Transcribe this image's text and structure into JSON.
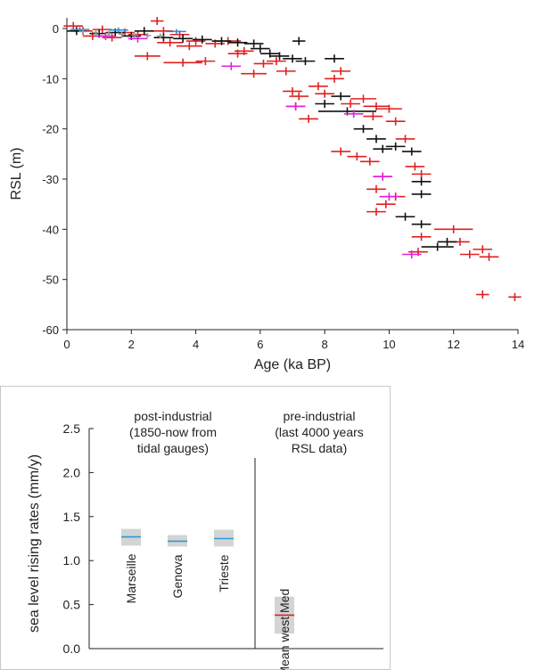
{
  "chart_data": [
    {
      "type": "scatter",
      "xlabel": "Age (ka BP)",
      "ylabel": "RSL (m)",
      "xlim": [
        0,
        14
      ],
      "ylim": [
        -60,
        2
      ],
      "xticks": [
        "0",
        "2",
        "4",
        "6",
        "8",
        "10",
        "12",
        "14"
      ],
      "yticks": [
        "0",
        "-10",
        "-20",
        "-30",
        "-40",
        "-50",
        "-60"
      ],
      "grid": false,
      "series": [
        {
          "color": "#e02020",
          "points": [
            [
              0.2,
              0.5,
              0.3,
              0.8
            ],
            [
              0.5,
              -0.5,
              0.3,
              0.8
            ],
            [
              0.8,
              -1.5,
              0.3,
              0.8
            ],
            [
              1.1,
              -0.2,
              0.3,
              0.8
            ],
            [
              1.4,
              -1.8,
              0.3,
              0.8
            ],
            [
              1.8,
              -0.8,
              0.3,
              0.8
            ],
            [
              2.2,
              -1.2,
              0.3,
              0.8
            ],
            [
              2.5,
              -5.5,
              0.4,
              0.8
            ],
            [
              2.8,
              1.5,
              0.2,
              0.8
            ],
            [
              3.0,
              -0.5,
              0.3,
              0.8
            ],
            [
              3.2,
              -2.8,
              0.4,
              0.8
            ],
            [
              3.5,
              -1.2,
              0.3,
              0.8
            ],
            [
              3.8,
              -3.5,
              0.4,
              0.8
            ],
            [
              4.0,
              -2.5,
              0.3,
              0.8
            ],
            [
              3.6,
              -6.8,
              0.6,
              0.8
            ],
            [
              4.3,
              -6.5,
              0.3,
              0.8
            ],
            [
              4.6,
              -3.0,
              0.3,
              0.8
            ],
            [
              5.0,
              -2.5,
              0.4,
              0.8
            ],
            [
              5.3,
              -5.0,
              0.3,
              0.8
            ],
            [
              5.5,
              -4.5,
              0.3,
              0.8
            ],
            [
              5.8,
              -9.0,
              0.4,
              0.8
            ],
            [
              6.1,
              -7.0,
              0.3,
              0.8
            ],
            [
              6.5,
              -6.5,
              0.3,
              0.8
            ],
            [
              6.8,
              -8.5,
              0.3,
              0.8
            ],
            [
              7.0,
              -12.5,
              0.3,
              0.8
            ],
            [
              7.2,
              -13.5,
              0.3,
              0.8
            ],
            [
              7.1,
              -15.5,
              0.3,
              0.8
            ],
            [
              7.5,
              -18.0,
              0.3,
              0.8
            ],
            [
              7.8,
              -11.5,
              0.3,
              0.8
            ],
            [
              8.0,
              -13.0,
              0.3,
              0.8
            ],
            [
              8.3,
              -10.0,
              0.3,
              0.8
            ],
            [
              8.5,
              -8.5,
              0.3,
              0.8
            ],
            [
              8.8,
              -15.0,
              0.3,
              0.8
            ],
            [
              9.2,
              -14.0,
              0.4,
              0.8
            ],
            [
              9.5,
              -17.5,
              0.3,
              0.8
            ],
            [
              9.6,
              -15.5,
              0.4,
              0.8
            ],
            [
              10.0,
              -16.0,
              0.4,
              0.8
            ],
            [
              10.2,
              -18.5,
              0.3,
              0.8
            ],
            [
              8.5,
              -24.5,
              0.3,
              0.8
            ],
            [
              9.0,
              -25.5,
              0.3,
              0.8
            ],
            [
              9.4,
              -26.5,
              0.3,
              0.8
            ],
            [
              9.6,
              -32.0,
              0.3,
              0.8
            ],
            [
              9.9,
              -35.0,
              0.3,
              0.8
            ],
            [
              10.2,
              -33.5,
              0.3,
              0.8
            ],
            [
              9.8,
              -29.5,
              0.3,
              0.8
            ],
            [
              10.5,
              -22.0,
              0.3,
              0.8
            ],
            [
              11.0,
              -29.0,
              0.3,
              0.8
            ],
            [
              10.8,
              -27.5,
              0.3,
              0.8
            ],
            [
              10.9,
              -44.5,
              0.3,
              0.8
            ],
            [
              11.0,
              -41.5,
              0.3,
              0.8
            ],
            [
              12.0,
              -40.0,
              0.6,
              0.8
            ],
            [
              12.2,
              -42.5,
              0.3,
              0.8
            ],
            [
              12.5,
              -45.0,
              0.3,
              0.8
            ],
            [
              12.9,
              -44.0,
              0.3,
              0.8
            ],
            [
              13.1,
              -45.5,
              0.3,
              0.8
            ],
            [
              12.9,
              -53.0,
              0.2,
              0.8
            ],
            [
              13.9,
              -53.5,
              0.2,
              0.8
            ],
            [
              9.6,
              -36.5,
              0.3,
              0.8
            ]
          ]
        },
        {
          "color": "#111111",
          "points": [
            [
              0.3,
              -0.5,
              0.3,
              0.8
            ],
            [
              1.0,
              -1.0,
              0.3,
              0.8
            ],
            [
              1.5,
              -0.8,
              0.3,
              0.8
            ],
            [
              2.0,
              -1.5,
              0.3,
              0.8
            ],
            [
              2.4,
              -0.5,
              0.3,
              0.8
            ],
            [
              3.0,
              -1.8,
              0.3,
              0.8
            ],
            [
              3.6,
              -2.0,
              0.3,
              0.8
            ],
            [
              4.2,
              -2.2,
              0.3,
              0.8
            ],
            [
              4.8,
              -2.5,
              0.3,
              0.8
            ],
            [
              5.3,
              -2.8,
              0.3,
              0.8
            ],
            [
              5.8,
              -3.0,
              0.3,
              0.8
            ],
            [
              6.0,
              -4.0,
              0.3,
              0.8
            ],
            [
              6.3,
              -5.0,
              0.3,
              0.8
            ],
            [
              6.6,
              -5.5,
              0.3,
              0.8
            ],
            [
              7.0,
              -6.0,
              0.3,
              0.8
            ],
            [
              7.4,
              -6.5,
              0.3,
              0.8
            ],
            [
              7.2,
              -2.5,
              0.2,
              0.8
            ],
            [
              8.3,
              -6.0,
              0.3,
              0.8
            ],
            [
              8.0,
              -15.0,
              0.3,
              0.8
            ],
            [
              8.5,
              -13.5,
              0.3,
              0.8
            ],
            [
              8.7,
              -16.5,
              0.9,
              0.8
            ],
            [
              9.2,
              -20.0,
              0.3,
              0.8
            ],
            [
              9.6,
              -22.0,
              0.3,
              0.8
            ],
            [
              9.8,
              -24.0,
              0.3,
              0.8
            ],
            [
              10.2,
              -23.5,
              0.3,
              0.8
            ],
            [
              10.7,
              -24.5,
              0.3,
              0.8
            ],
            [
              11.0,
              -30.5,
              0.3,
              0.8
            ],
            [
              11.0,
              -33.0,
              0.3,
              0.8
            ],
            [
              11.0,
              -39.0,
              0.3,
              0.8
            ],
            [
              10.5,
              -37.5,
              0.3,
              0.8
            ],
            [
              11.5,
              -43.5,
              0.5,
              0.8
            ],
            [
              11.8,
              -42.5,
              0.3,
              0.8
            ]
          ]
        },
        {
          "color": "#e020e0",
          "points": [
            [
              1.2,
              -1.5,
              0.3,
              0.8
            ],
            [
              2.2,
              -2.0,
              0.3,
              0.8
            ],
            [
              5.1,
              -7.5,
              0.3,
              0.8
            ],
            [
              7.1,
              -15.5,
              0.3,
              0.8
            ],
            [
              9.8,
              -29.5,
              0.3,
              0.8
            ],
            [
              10.0,
              -33.5,
              0.3,
              0.8
            ],
            [
              10.7,
              -45.0,
              0.3,
              0.8
            ],
            [
              8.9,
              -17.0,
              0.3,
              0.8
            ]
          ]
        },
        {
          "color": "#2090e0",
          "points": [
            [
              0.4,
              -0.2,
              0.3,
              0.5
            ],
            [
              1.6,
              -0.3,
              0.3,
              0.5
            ],
            [
              3.4,
              -0.6,
              0.3,
              0.5
            ]
          ]
        },
        {
          "color": "#9a9a9a",
          "points": [
            [
              0.5,
              -0.6,
              0.1,
              0.5
            ],
            [
              0.9,
              -0.8,
              0.1,
              0.5
            ],
            [
              1.3,
              -1.0,
              0.1,
              0.5
            ],
            [
              1.7,
              -1.1,
              0.1,
              0.5
            ],
            [
              2.1,
              -1.3,
              0.1,
              0.5
            ],
            [
              2.5,
              -1.4,
              0.1,
              0.5
            ],
            [
              2.9,
              -1.5,
              0.1,
              0.5
            ]
          ]
        }
      ]
    },
    {
      "type": "range",
      "ylabel": "sea level rising rates (mm/y)",
      "ylim": [
        0,
        2.5
      ],
      "yticks": [
        "0.0",
        "0.5",
        "1.0",
        "1.5",
        "2.0",
        "2.5"
      ],
      "groups": [
        {
          "title_lines": [
            "post-industrial",
            "(1850-now from",
            "tidal gauges)"
          ]
        },
        {
          "title_lines": [
            "pre-industrial",
            "(last 4000 years",
            "RSL data)"
          ]
        }
      ],
      "items": [
        {
          "label": "Marseille",
          "mean": 1.27,
          "low": 1.17,
          "high": 1.36,
          "line_color": "#2a9ad6"
        },
        {
          "label": "Genova",
          "mean": 1.22,
          "low": 1.16,
          "high": 1.29,
          "line_color": "#2a9ad6"
        },
        {
          "label": "Trieste",
          "mean": 1.25,
          "low": 1.16,
          "high": 1.35,
          "line_color": "#2a9ad6"
        },
        {
          "label": "Mean west Med",
          "mean": 0.38,
          "low": 0.17,
          "high": 0.59,
          "line_color": "#e02020"
        }
      ],
      "box_fill": "#d4d4d4"
    }
  ]
}
